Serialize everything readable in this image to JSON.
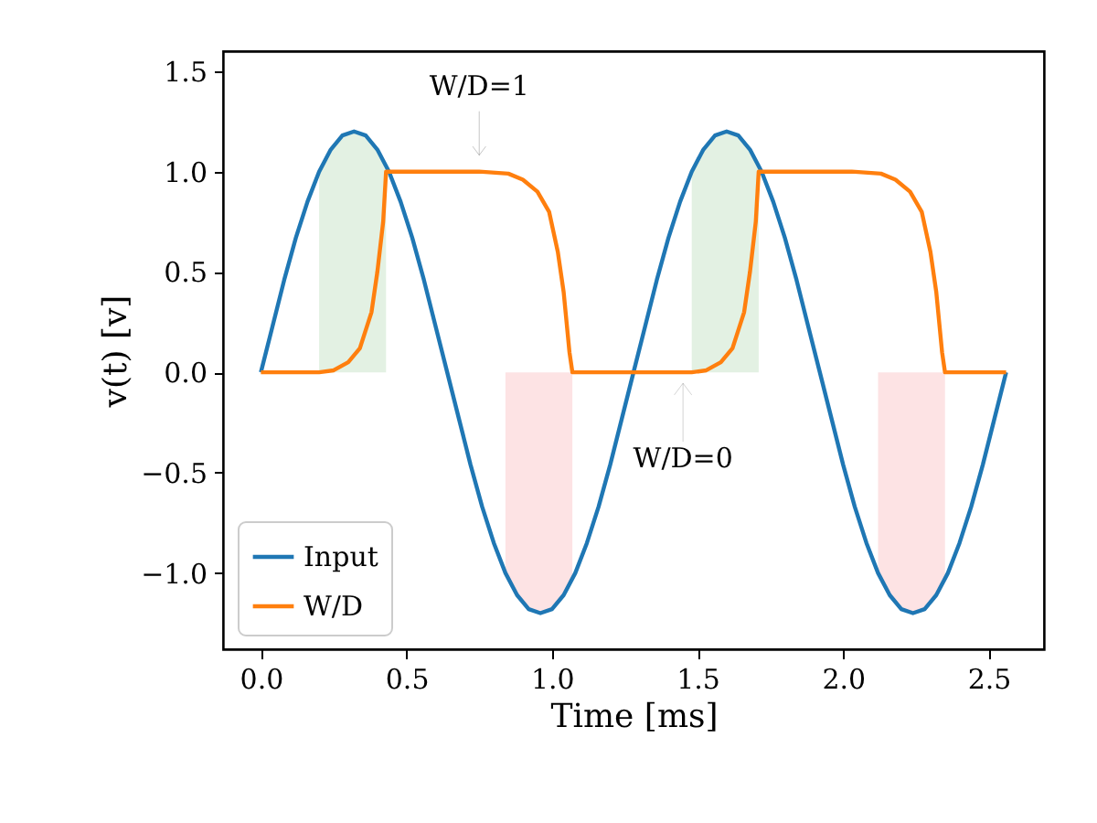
{
  "chart_data": {
    "type": "line",
    "xlabel": "Time [ms]",
    "ylabel": "v(t) [v]",
    "xlim": [
      -0.13,
      2.69
    ],
    "ylim": [
      -1.38,
      1.6
    ],
    "xticks": [
      {
        "value": 0,
        "label": "0.0"
      },
      0.5,
      {
        "value": 1,
        "label": "1.0"
      },
      1.5,
      {
        "value": 2,
        "label": "2.0"
      },
      2.5
    ],
    "yticks": [
      {
        "value": -1,
        "label": "−1.0"
      },
      {
        "value": -0.5,
        "label": "−0.5"
      },
      {
        "value": 0,
        "label": "0.0"
      },
      0.5,
      {
        "value": 1,
        "label": "1.0"
      },
      1.5
    ],
    "grid": false,
    "legend": "bottom left",
    "series": [
      {
        "type": "area",
        "color": "#e3f1e3",
        "x": [
          0.2,
          0.24,
          0.28,
          0.32,
          0.36,
          0.4,
          0.43
        ],
        "values": [
          1.0,
          1.11,
          1.18,
          1.2,
          1.18,
          1.11,
          1.03
        ]
      },
      {
        "type": "area",
        "color": "#fde3e4",
        "x": [
          0.84,
          0.88,
          0.92,
          0.96,
          1.0,
          1.04,
          1.07
        ],
        "values": [
          -1.0,
          -1.11,
          -1.18,
          -1.2,
          -1.18,
          -1.11,
          -1.03
        ]
      },
      {
        "type": "area",
        "color": "#e3f1e3",
        "x": [
          1.48,
          1.52,
          1.56,
          1.6,
          1.64,
          1.68,
          1.71
        ],
        "values": [
          1.0,
          1.11,
          1.18,
          1.2,
          1.18,
          1.11,
          1.03
        ]
      },
      {
        "type": "area",
        "color": "#fde3e4",
        "x": [
          2.12,
          2.16,
          2.2,
          2.24,
          2.28,
          2.32,
          2.35
        ],
        "values": [
          -1.0,
          -1.11,
          -1.18,
          -1.2,
          -1.18,
          -1.11,
          -1.03
        ]
      },
      {
        "name": "Input",
        "color": "#1f77b4",
        "x": [
          0,
          0.04,
          0.08,
          0.12,
          0.16,
          0.2,
          0.24,
          0.28,
          0.32,
          0.36,
          0.4,
          0.44,
          0.48,
          0.52,
          0.56,
          0.6,
          0.64,
          0.68,
          0.72,
          0.76,
          0.8,
          0.84,
          0.88,
          0.92,
          0.96,
          1.0,
          1.04,
          1.08,
          1.12,
          1.16,
          1.2,
          1.24,
          1.28,
          1.32,
          1.36,
          1.4,
          1.44,
          1.48,
          1.52,
          1.56,
          1.6,
          1.64,
          1.68,
          1.72,
          1.76,
          1.8,
          1.84,
          1.88,
          1.92,
          1.96,
          2.0,
          2.04,
          2.08,
          2.12,
          2.16,
          2.2,
          2.24,
          2.28,
          2.32,
          2.36,
          2.4,
          2.44,
          2.48,
          2.52,
          2.56
        ],
        "values": [
          0,
          0.23,
          0.46,
          0.67,
          0.85,
          1.0,
          1.11,
          1.18,
          1.2,
          1.18,
          1.11,
          1.0,
          0.85,
          0.67,
          0.46,
          0.23,
          0,
          -0.23,
          -0.46,
          -0.67,
          -0.85,
          -1.0,
          -1.11,
          -1.18,
          -1.2,
          -1.18,
          -1.11,
          -1.0,
          -0.85,
          -0.67,
          -0.46,
          -0.23,
          0,
          0.23,
          0.46,
          0.67,
          0.85,
          1.0,
          1.11,
          1.18,
          1.2,
          1.18,
          1.11,
          1.0,
          0.85,
          0.67,
          0.46,
          0.23,
          0,
          -0.23,
          -0.46,
          -0.67,
          -0.85,
          -1.0,
          -1.11,
          -1.18,
          -1.2,
          -1.18,
          -1.11,
          -1.0,
          -0.85,
          -0.67,
          -0.46,
          -0.23,
          0
        ]
      },
      {
        "name": "W/D",
        "color": "#ff7f0e",
        "x": [
          0,
          0.2,
          0.25,
          0.3,
          0.34,
          0.38,
          0.4,
          0.42,
          0.43,
          0.75,
          0.85,
          0.9,
          0.95,
          0.99,
          1.02,
          1.04,
          1.06,
          1.07,
          1.28,
          1.48,
          1.53,
          1.58,
          1.62,
          1.66,
          1.68,
          1.7,
          1.71,
          2.03,
          2.13,
          2.18,
          2.23,
          2.27,
          2.3,
          2.32,
          2.34,
          2.35,
          2.56
        ],
        "values": [
          0,
          0,
          0.01,
          0.05,
          0.12,
          0.3,
          0.5,
          0.75,
          1.0,
          1.0,
          0.99,
          0.96,
          0.9,
          0.8,
          0.6,
          0.4,
          0.1,
          0,
          0,
          0,
          0.01,
          0.05,
          0.12,
          0.3,
          0.5,
          0.75,
          1.0,
          1.0,
          0.99,
          0.96,
          0.9,
          0.8,
          0.6,
          0.4,
          0.1,
          0,
          0
        ]
      }
    ],
    "annotations": [
      {
        "text": "W/D=1",
        "x": 0.75,
        "y": 1.0
      },
      {
        "text": "W/D=0",
        "x": 1.45,
        "y": 0.0
      }
    ]
  }
}
